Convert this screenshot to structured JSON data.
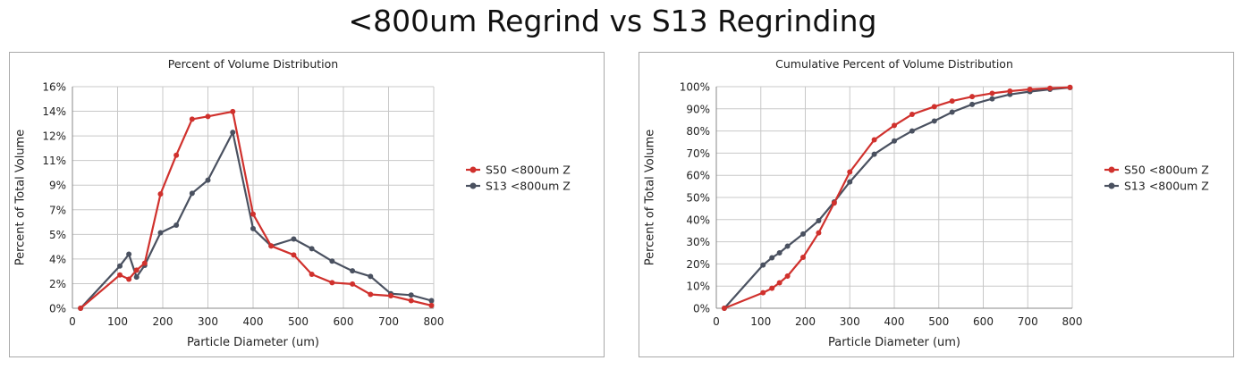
{
  "slide": {
    "title": "<800um Regrind vs S13 Regrinding"
  },
  "colors": {
    "s50": "#d0312d",
    "s13": "#4a5160",
    "grid": "#c8c8c8",
    "axis": "#888888"
  },
  "chart_data": [
    {
      "type": "line",
      "title": "Percent of Volume Distribution",
      "xlabel": "Particle Diameter (um)",
      "ylabel": "Percent of Total Volume",
      "xlim": [
        0,
        800
      ],
      "ylim": [
        0,
        16
      ],
      "x_ticks": [
        0,
        100,
        200,
        300,
        400,
        500,
        600,
        700,
        800
      ],
      "x_tick_labels": [
        "0",
        "100",
        "200",
        "300",
        "400",
        "500",
        "600",
        "700",
        "800"
      ],
      "y_ticks": [
        0,
        1.777,
        3.555,
        5.333,
        7.111,
        8.888,
        10.666,
        12.444,
        14.222,
        16
      ],
      "y_tick_labels": [
        "0%",
        "2%",
        "4%",
        "5%",
        "7%",
        "9%",
        "11%",
        "12%",
        "14%",
        "16%"
      ],
      "grid": true,
      "legend": "right",
      "series": [
        {
          "name": "S50 <800um Z",
          "color": "#d0312d",
          "x": [
            18,
            105,
            125,
            142,
            160,
            195,
            230,
            265,
            300,
            355,
            400,
            440,
            490,
            530,
            575,
            620,
            660,
            705,
            750,
            795
          ],
          "y": [
            0,
            2.4,
            2.1,
            2.75,
            3.25,
            8.25,
            11.05,
            13.65,
            13.85,
            14.2,
            6.8,
            4.5,
            3.85,
            2.45,
            1.85,
            1.75,
            1.0,
            0.9,
            0.55,
            0.2
          ]
        },
        {
          "name": "S13 <800um Z",
          "color": "#4a5160",
          "x": [
            18,
            105,
            125,
            142,
            160,
            195,
            230,
            265,
            300,
            355,
            400,
            440,
            490,
            530,
            575,
            620,
            660,
            705,
            750,
            795
          ],
          "y": [
            0,
            3.05,
            3.9,
            2.25,
            3.1,
            5.45,
            6.0,
            8.3,
            9.25,
            12.7,
            5.75,
            4.5,
            5.0,
            4.3,
            3.4,
            2.7,
            2.3,
            1.05,
            0.95,
            0.55
          ]
        }
      ]
    },
    {
      "type": "line",
      "title": "Cumulative Percent of Volume Distribution",
      "xlabel": "Particle Diameter (um)",
      "ylabel": "Percent of Total Volume",
      "xlim": [
        0,
        800
      ],
      "ylim": [
        0,
        100
      ],
      "x_ticks": [
        0,
        100,
        200,
        300,
        400,
        500,
        600,
        700,
        800
      ],
      "x_tick_labels": [
        "0",
        "100",
        "200",
        "300",
        "400",
        "500",
        "600",
        "700",
        "800"
      ],
      "y_ticks": [
        0,
        10,
        20,
        30,
        40,
        50,
        60,
        70,
        80,
        90,
        100
      ],
      "y_tick_labels": [
        "0%",
        "10%",
        "20%",
        "30%",
        "40%",
        "50%",
        "60%",
        "70%",
        "80%",
        "90%",
        "100%"
      ],
      "grid": true,
      "legend": "right",
      "series": [
        {
          "name": "S50 <800um Z",
          "color": "#d0312d",
          "x": [
            18,
            105,
            125,
            142,
            160,
            195,
            230,
            265,
            300,
            355,
            400,
            440,
            490,
            530,
            575,
            620,
            660,
            705,
            750,
            795
          ],
          "y": [
            0,
            7,
            9,
            11.5,
            14.5,
            23,
            34,
            47.5,
            61.5,
            76,
            82.5,
            87.5,
            91,
            93.5,
            95.5,
            97,
            98,
            98.8,
            99.3,
            99.7
          ]
        },
        {
          "name": "S13 <800um Z",
          "color": "#4a5160",
          "x": [
            18,
            105,
            125,
            142,
            160,
            195,
            230,
            265,
            300,
            355,
            400,
            440,
            490,
            530,
            575,
            620,
            660,
            705,
            750,
            795
          ],
          "y": [
            0,
            19.5,
            22.8,
            25,
            28,
            33.5,
            39.5,
            48,
            57,
            69.5,
            75.5,
            80,
            84.5,
            88.5,
            92,
            94.5,
            96.5,
            97.8,
            98.8,
            99.6
          ]
        }
      ]
    }
  ]
}
